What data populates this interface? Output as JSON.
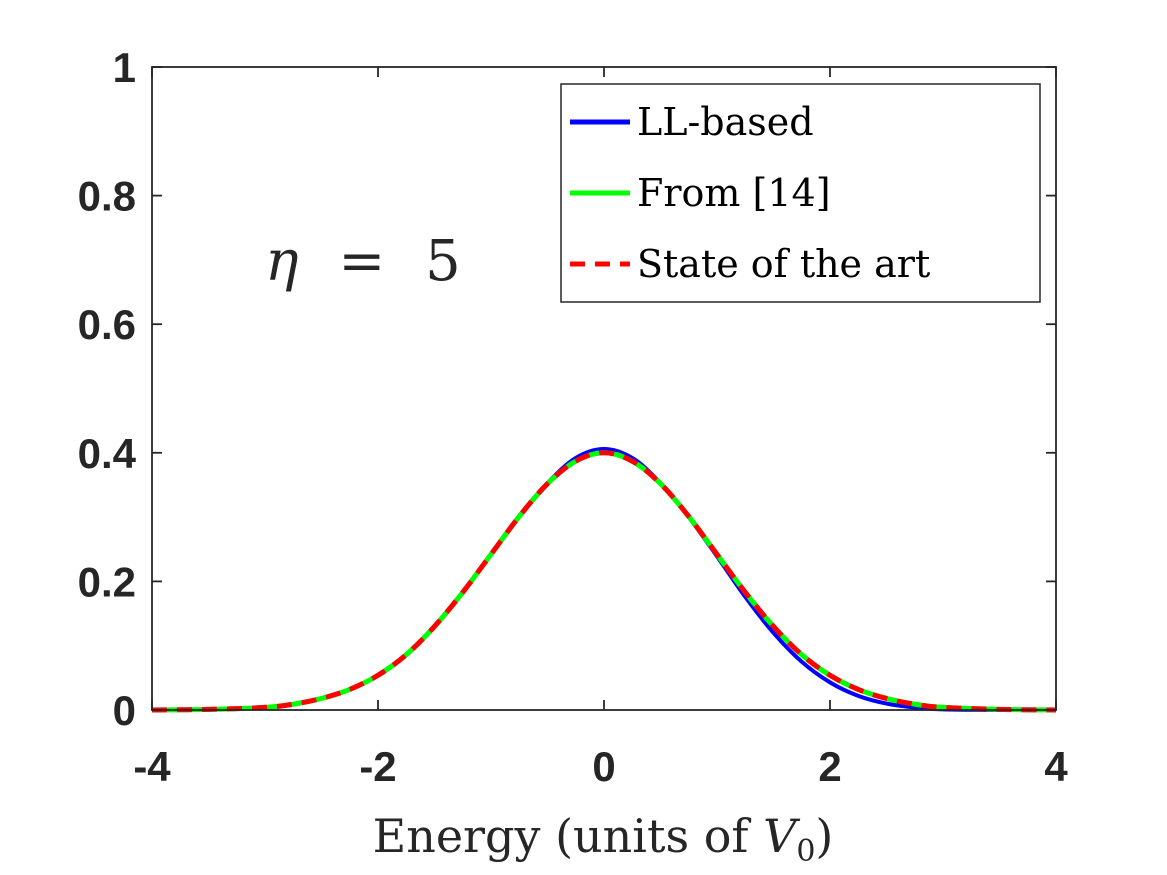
{
  "chart_data": {
    "type": "line",
    "title": "",
    "xlabel_prefix": "Energy (units of ",
    "xlabel_symbol": "V",
    "xlabel_subscript": "0",
    "xlabel_suffix": ")",
    "ylabel": "",
    "xlim": [
      -4,
      4
    ],
    "ylim": [
      0,
      1
    ],
    "xticks": [
      "-4",
      "-2",
      "0",
      "2",
      "4"
    ],
    "yticks": [
      "0",
      "0.2",
      "0.4",
      "0.6",
      "0.8",
      "1"
    ],
    "grid": false,
    "legend_position": "top-right",
    "annotation": {
      "symbol": "η",
      "operator": "=",
      "value": "5"
    },
    "x": [
      -4.0,
      -3.5,
      -3.0,
      -2.75,
      -2.5,
      -2.25,
      -2.0,
      -1.75,
      -1.5,
      -1.25,
      -1.0,
      -0.75,
      -0.5,
      -0.25,
      0.0,
      0.25,
      0.5,
      0.75,
      1.0,
      1.25,
      1.5,
      1.75,
      2.0,
      2.25,
      2.5,
      2.75,
      3.0,
      3.5,
      4.0
    ],
    "series": [
      {
        "name": "LL-based",
        "color": "#0000ff",
        "style": "solid",
        "values": [
          0.0,
          0.001,
          0.004,
          0.009,
          0.018,
          0.032,
          0.054,
          0.086,
          0.13,
          0.183,
          0.243,
          0.302,
          0.353,
          0.392,
          0.406,
          0.392,
          0.353,
          0.3,
          0.239,
          0.176,
          0.12,
          0.075,
          0.043,
          0.022,
          0.01,
          0.004,
          0.001,
          0.0,
          0.0
        ]
      },
      {
        "name": "From [14]",
        "color": "#00ff00",
        "style": "solid",
        "values": [
          0.0,
          0.001,
          0.004,
          0.009,
          0.018,
          0.032,
          0.054,
          0.086,
          0.13,
          0.183,
          0.242,
          0.301,
          0.352,
          0.387,
          0.4,
          0.387,
          0.352,
          0.301,
          0.242,
          0.183,
          0.13,
          0.086,
          0.054,
          0.032,
          0.018,
          0.009,
          0.004,
          0.001,
          0.0
        ]
      },
      {
        "name": "State of the art",
        "color": "#ff0000",
        "style": "dashed",
        "values": [
          0.0,
          0.001,
          0.004,
          0.009,
          0.018,
          0.032,
          0.054,
          0.086,
          0.13,
          0.183,
          0.242,
          0.301,
          0.352,
          0.387,
          0.4,
          0.387,
          0.352,
          0.301,
          0.242,
          0.183,
          0.13,
          0.086,
          0.054,
          0.032,
          0.018,
          0.009,
          0.004,
          0.001,
          0.0
        ]
      }
    ]
  }
}
